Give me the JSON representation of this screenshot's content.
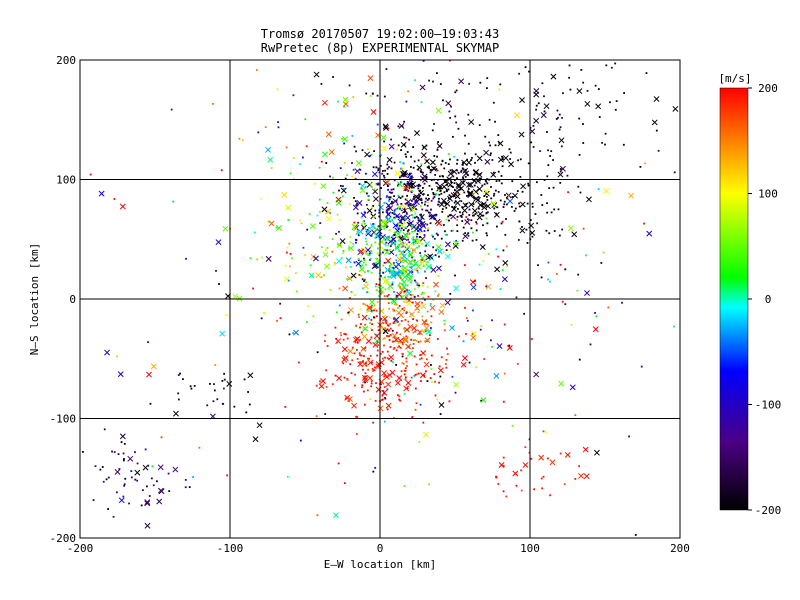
{
  "chart_data": {
    "type": "scatter",
    "title": "Tromsø 20170507 19:02:00–19:03:43",
    "subtitle": "RwPretec (8p) EXPERIMENTAL SKYMAP",
    "xlabel": "E–W location [km]",
    "ylabel": "N–S location [km]",
    "xlim": [
      -200,
      200
    ],
    "ylim": [
      -200,
      200
    ],
    "x_ticks": [
      -200,
      -100,
      0,
      100,
      200
    ],
    "y_ticks": [
      -200,
      -100,
      0,
      100,
      200
    ],
    "grid": true,
    "markers": [
      "dot",
      "x"
    ],
    "colorbar": {
      "label": "[m/s]",
      "range": [
        -200,
        200
      ],
      "ticks": [
        200,
        100,
        0,
        -100,
        -200
      ],
      "colormap": [
        "#000000",
        "#4b0082",
        "#0000ff",
        "#00ffff",
        "#00ff00",
        "#ffff00",
        "#ff0000"
      ]
    },
    "clusters": [
      {
        "x": 30,
        "y": 90,
        "sx": 25,
        "sy": 18,
        "n": 320,
        "v": -200,
        "vs": 15
      },
      {
        "x": 75,
        "y": 85,
        "sx": 28,
        "sy": 22,
        "n": 200,
        "v": -195,
        "vs": 10
      },
      {
        "x": 90,
        "y": 150,
        "sx": 55,
        "sy": 30,
        "n": 150,
        "v": -190,
        "vs": 20
      },
      {
        "x": 15,
        "y": 65,
        "sx": 18,
        "sy": 25,
        "n": 200,
        "v": -110,
        "vs": 25
      },
      {
        "x": 10,
        "y": 30,
        "sx": 15,
        "sy": 25,
        "n": 350,
        "v": 20,
        "vs": 40
      },
      {
        "x": -30,
        "y": 55,
        "sx": 30,
        "sy": 35,
        "n": 100,
        "v": 70,
        "vs": 40
      },
      {
        "x": 5,
        "y": -50,
        "sx": 20,
        "sy": 25,
        "n": 280,
        "v": 190,
        "vs": 15
      },
      {
        "x": 15,
        "y": -15,
        "sx": 15,
        "sy": 15,
        "n": 120,
        "v": 150,
        "vs": 30
      },
      {
        "x": -30,
        "y": 120,
        "sx": 35,
        "sy": 40,
        "n": 70,
        "v": 20,
        "vs": 80
      },
      {
        "x": -170,
        "y": -150,
        "sx": 18,
        "sy": 20,
        "n": 60,
        "v": -150,
        "vs": 40
      },
      {
        "x": -110,
        "y": -80,
        "sx": 15,
        "sy": 15,
        "n": 30,
        "v": -180,
        "vs": 30
      },
      {
        "x": 105,
        "y": -145,
        "sx": 20,
        "sy": 12,
        "n": 30,
        "v": 190,
        "vs": 10
      },
      {
        "x": 60,
        "y": 10,
        "sx": 45,
        "sy": 60,
        "n": 120,
        "v": 0,
        "vs": 180
      },
      {
        "x": 0,
        "y": 0,
        "sx": 110,
        "sy": 110,
        "n": 200,
        "v": 0,
        "vs": 180
      }
    ]
  }
}
